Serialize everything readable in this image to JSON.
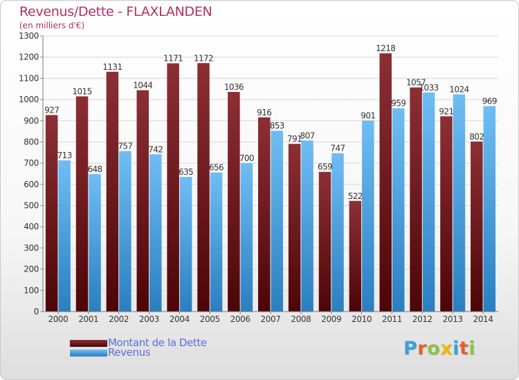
{
  "title": "Revenus/Dette - FLAXLANDEN",
  "subtitle": "(en milliers d'€)",
  "colors": {
    "title": "#b03060",
    "debt_top": "#8c2f35",
    "debt_bottom": "#4d0507",
    "revenue_top": "#6fbdf4",
    "revenue_bottom": "#2a7fc0",
    "grid": "#d6d6d6",
    "axis_text": "#333333",
    "legend_text": "#5a6edc"
  },
  "legend": [
    {
      "label": "Montant de la Dette",
      "color": "#7a1f23",
      "icon": "dark-red-bar-swatch"
    },
    {
      "label": "Revenus",
      "color": "#4aa3e6",
      "icon": "blue-bar-swatch"
    }
  ],
  "logo": {
    "text": "Proxiti",
    "icon": "proxiti-logo"
  },
  "chart_data": {
    "type": "bar",
    "categories": [
      "2000",
      "2001",
      "2002",
      "2003",
      "2004",
      "2005",
      "2006",
      "2007",
      "2008",
      "2009",
      "2010",
      "2011",
      "2012",
      "2013",
      "2014"
    ],
    "series": [
      {
        "name": "Montant de la Dette",
        "values": [
          927,
          1015,
          1131,
          1044,
          1171,
          1172,
          1036,
          916,
          791,
          659,
          522,
          1218,
          1057,
          921,
          802
        ],
        "labels": [
          "927",
          "1015",
          "1131",
          "1044",
          "1171",
          "1172",
          "1036",
          "916",
          "791",
          "659",
          "522",
          "1218",
          "1057",
          "921",
          "802"
        ]
      },
      {
        "name": "Revenus",
        "values": [
          713,
          648,
          757,
          742,
          635,
          656,
          700,
          853,
          807,
          747,
          901,
          959,
          1033,
          1024,
          969
        ],
        "labels": [
          "713",
          "648",
          "757",
          "742",
          "635",
          "656",
          "700",
          "853",
          "807",
          "747",
          "901",
          "959",
          "1033",
          "1024",
          "969"
        ]
      }
    ],
    "ylim": [
      0,
      1300
    ],
    "yticks": [
      0,
      100,
      200,
      300,
      400,
      500,
      600,
      700,
      800,
      900,
      1000,
      1100,
      1200,
      1300
    ],
    "xlabel": "",
    "ylabel": "",
    "grid": true,
    "legend_position": "bottom-left"
  }
}
